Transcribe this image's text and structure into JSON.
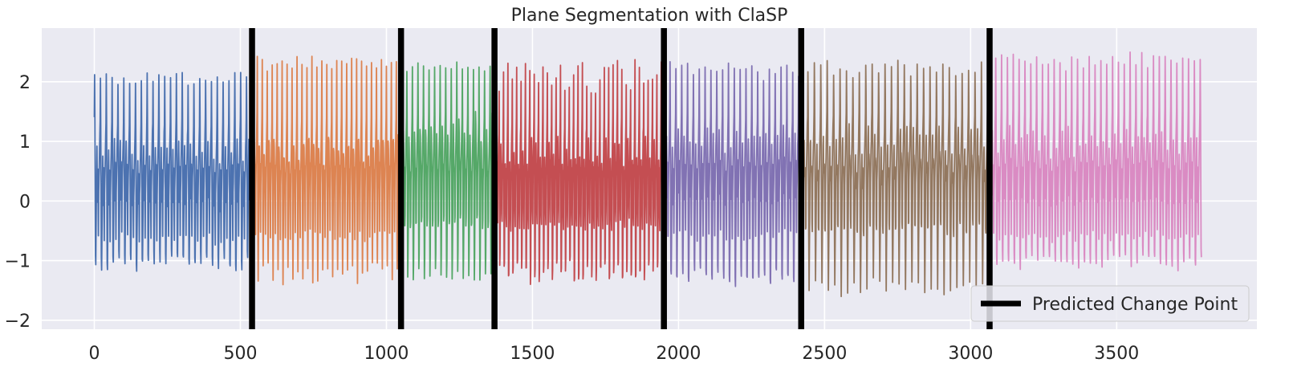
{
  "chart_data": {
    "type": "line",
    "title": "Plane Segmentation with ClaSP",
    "xlabel": "",
    "ylabel": "",
    "xlim": [
      -180,
      3980
    ],
    "ylim": [
      -2.15,
      2.9
    ],
    "xticks": [
      0,
      500,
      1000,
      1500,
      2000,
      2500,
      3000,
      3500
    ],
    "yticks": [
      -2,
      -1,
      0,
      1,
      2
    ],
    "grid": true,
    "n_points": 3790,
    "change_points": [
      540,
      1050,
      1370,
      1950,
      2420,
      3065
    ],
    "legend": {
      "position": "lower-right",
      "entries": [
        "Predicted Change Point"
      ]
    },
    "series": [
      {
        "x_range": [
          0,
          540
        ],
        "color": "#4c72b0",
        "period": 20,
        "high": [
          2.05,
          2.35
        ],
        "low": [
          -1.5,
          -1.25
        ],
        "mid": 0.5
      },
      {
        "x_range": [
          540,
          1050
        ],
        "color": "#dd8452",
        "period": 17,
        "high": [
          2.2,
          2.45
        ],
        "low": [
          -1.55,
          -1.25
        ],
        "mid": 0.7
      },
      {
        "x_range": [
          1050,
          1370
        ],
        "color": "#55a868",
        "period": 19,
        "high": [
          2.3,
          2.5
        ],
        "low": [
          -1.6,
          -1.35
        ],
        "mid": 1.0
      },
      {
        "x_range": [
          1370,
          1950
        ],
        "color": "#c44e52",
        "period": 15,
        "high": [
          1.95,
          2.5
        ],
        "low": [
          -1.9,
          -1.5
        ],
        "mid": 0.7
      },
      {
        "x_range": [
          1950,
          2420
        ],
        "color": "#8172b3",
        "period": 20,
        "high": [
          2.2,
          2.45
        ],
        "low": [
          -1.85,
          -1.5
        ],
        "mid": 0.7
      },
      {
        "x_range": [
          2420,
          3065
        ],
        "color": "#937860",
        "period": 22,
        "high": [
          2.35,
          2.6
        ],
        "low": [
          -1.7,
          -1.4
        ],
        "mid": 0.75
      },
      {
        "x_range": [
          3065,
          3790
        ],
        "color": "#da8bc3",
        "period": 20,
        "high": [
          2.4,
          2.65
        ],
        "low": [
          -1.45,
          -1.2
        ],
        "mid": 0.65
      }
    ]
  }
}
